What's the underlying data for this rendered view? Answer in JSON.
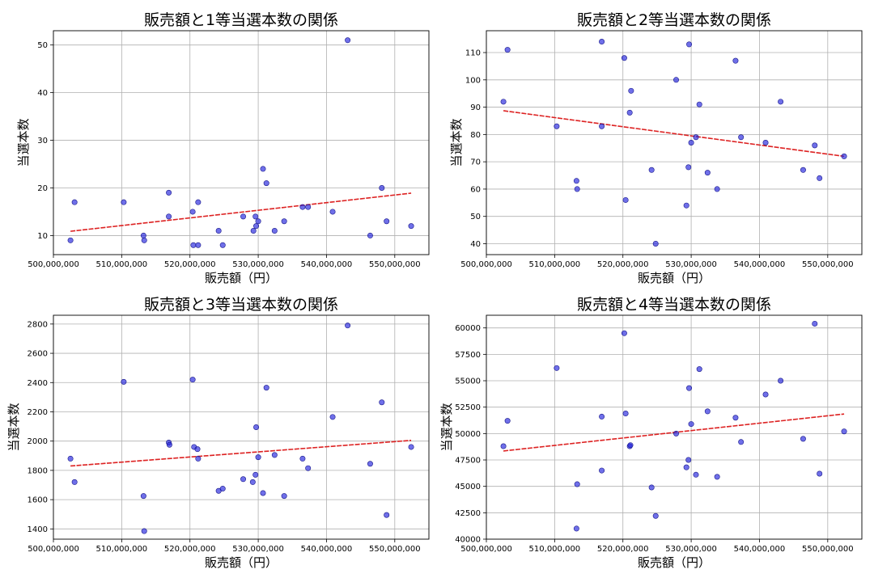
{
  "chart_data": [
    {
      "type": "scatter",
      "title": "販売額と1等当選本数の関係",
      "xlabel": "販売額（円）",
      "ylabel": "当選本数",
      "xlim": [
        500000000,
        555000000
      ],
      "ylim": [
        6,
        53
      ],
      "xticks": [
        500000000,
        510000000,
        520000000,
        530000000,
        540000000,
        550000000
      ],
      "xtick_labels": [
        "500,000,000",
        "510,000,000",
        "520,000,000",
        "530,000,000",
        "540,000,000",
        "550,000,000"
      ],
      "yticks": [
        10,
        20,
        30,
        40,
        50
      ],
      "ytick_labels": [
        "10",
        "20",
        "30",
        "40",
        "50"
      ],
      "grid": true,
      "points": [
        {
          "x": 502500000,
          "y": 9
        },
        {
          "x": 503100000,
          "y": 17
        },
        {
          "x": 510300000,
          "y": 17
        },
        {
          "x": 513200000,
          "y": 10
        },
        {
          "x": 513300000,
          "y": 9
        },
        {
          "x": 516900000,
          "y": 19
        },
        {
          "x": 516900000,
          "y": 14
        },
        {
          "x": 520400000,
          "y": 15
        },
        {
          "x": 520500000,
          "y": 8
        },
        {
          "x": 521200000,
          "y": 17
        },
        {
          "x": 521200000,
          "y": 8
        },
        {
          "x": 524200000,
          "y": 11
        },
        {
          "x": 524800000,
          "y": 8
        },
        {
          "x": 527800000,
          "y": 14
        },
        {
          "x": 529300000,
          "y": 11
        },
        {
          "x": 529600000,
          "y": 14
        },
        {
          "x": 529700000,
          "y": 12
        },
        {
          "x": 530000000,
          "y": 13
        },
        {
          "x": 530700000,
          "y": 24
        },
        {
          "x": 531200000,
          "y": 21
        },
        {
          "x": 532400000,
          "y": 11
        },
        {
          "x": 533800000,
          "y": 13
        },
        {
          "x": 536500000,
          "y": 16
        },
        {
          "x": 537300000,
          "y": 16
        },
        {
          "x": 540900000,
          "y": 15
        },
        {
          "x": 543100000,
          "y": 51
        },
        {
          "x": 546400000,
          "y": 10
        },
        {
          "x": 548100000,
          "y": 20
        },
        {
          "x": 548800000,
          "y": 13
        },
        {
          "x": 552400000,
          "y": 12
        }
      ],
      "trend": {
        "x": [
          502500000,
          552400000
        ],
        "y": [
          10.9,
          18.9
        ]
      }
    },
    {
      "type": "scatter",
      "title": "販売額と2等当選本数の関係",
      "xlabel": "販売額（円）",
      "ylabel": "当選本数",
      "xlim": [
        500000000,
        555000000
      ],
      "ylim": [
        36,
        118
      ],
      "xticks": [
        500000000,
        510000000,
        520000000,
        530000000,
        540000000,
        550000000
      ],
      "xtick_labels": [
        "500,000,000",
        "510,000,000",
        "520,000,000",
        "530,000,000",
        "540,000,000",
        "550,000,000"
      ],
      "yticks": [
        40,
        50,
        60,
        70,
        80,
        90,
        100,
        110
      ],
      "ytick_labels": [
        "40",
        "50",
        "60",
        "70",
        "80",
        "90",
        "100",
        "110"
      ],
      "grid": true,
      "points": [
        {
          "x": 502500000,
          "y": 92
        },
        {
          "x": 503100000,
          "y": 111
        },
        {
          "x": 510300000,
          "y": 83
        },
        {
          "x": 513200000,
          "y": 63
        },
        {
          "x": 513300000,
          "y": 60
        },
        {
          "x": 516900000,
          "y": 114
        },
        {
          "x": 516900000,
          "y": 83
        },
        {
          "x": 520200000,
          "y": 108
        },
        {
          "x": 520400000,
          "y": 56
        },
        {
          "x": 521000000,
          "y": 88
        },
        {
          "x": 521200000,
          "y": 96
        },
        {
          "x": 524200000,
          "y": 67
        },
        {
          "x": 524800000,
          "y": 40
        },
        {
          "x": 527800000,
          "y": 100
        },
        {
          "x": 529300000,
          "y": 54
        },
        {
          "x": 529600000,
          "y": 68
        },
        {
          "x": 529700000,
          "y": 113
        },
        {
          "x": 530000000,
          "y": 77
        },
        {
          "x": 530700000,
          "y": 79
        },
        {
          "x": 531200000,
          "y": 91
        },
        {
          "x": 532400000,
          "y": 66
        },
        {
          "x": 533800000,
          "y": 60
        },
        {
          "x": 536500000,
          "y": 107
        },
        {
          "x": 537300000,
          "y": 79
        },
        {
          "x": 540900000,
          "y": 77
        },
        {
          "x": 543100000,
          "y": 92
        },
        {
          "x": 546400000,
          "y": 67
        },
        {
          "x": 548100000,
          "y": 76
        },
        {
          "x": 548800000,
          "y": 64
        },
        {
          "x": 552400000,
          "y": 72
        }
      ],
      "trend": {
        "x": [
          502500000,
          552400000
        ],
        "y": [
          88.7,
          72.0
        ]
      }
    },
    {
      "type": "scatter",
      "title": "販売額と3等当選本数の関係",
      "xlabel": "販売額（円）",
      "ylabel": "当選本数",
      "xlim": [
        500000000,
        555000000
      ],
      "ylim": [
        1330,
        2860
      ],
      "xticks": [
        500000000,
        510000000,
        520000000,
        530000000,
        540000000,
        550000000
      ],
      "xtick_labels": [
        "500,000,000",
        "510,000,000",
        "520,000,000",
        "530,000,000",
        "540,000,000",
        "550,000,000"
      ],
      "yticks": [
        1400,
        1600,
        1800,
        2000,
        2200,
        2400,
        2600,
        2800
      ],
      "ytick_labels": [
        "1400",
        "1600",
        "1800",
        "2000",
        "2200",
        "2400",
        "2600",
        "2800"
      ],
      "grid": true,
      "points": [
        {
          "x": 502500000,
          "y": 1880
        },
        {
          "x": 503100000,
          "y": 1720
        },
        {
          "x": 510300000,
          "y": 2405
        },
        {
          "x": 513200000,
          "y": 1625
        },
        {
          "x": 513300000,
          "y": 1385
        },
        {
          "x": 516900000,
          "y": 1990
        },
        {
          "x": 517000000,
          "y": 1975
        },
        {
          "x": 520400000,
          "y": 2420
        },
        {
          "x": 520600000,
          "y": 1960
        },
        {
          "x": 521100000,
          "y": 1945
        },
        {
          "x": 521200000,
          "y": 1880
        },
        {
          "x": 524200000,
          "y": 1660
        },
        {
          "x": 524800000,
          "y": 1675
        },
        {
          "x": 527800000,
          "y": 1740
        },
        {
          "x": 529200000,
          "y": 1720
        },
        {
          "x": 529600000,
          "y": 1770
        },
        {
          "x": 529700000,
          "y": 2095
        },
        {
          "x": 530000000,
          "y": 1890
        },
        {
          "x": 530700000,
          "y": 1645
        },
        {
          "x": 531200000,
          "y": 2365
        },
        {
          "x": 532400000,
          "y": 1905
        },
        {
          "x": 533800000,
          "y": 1625
        },
        {
          "x": 536500000,
          "y": 1880
        },
        {
          "x": 537300000,
          "y": 1815
        },
        {
          "x": 540900000,
          "y": 2165
        },
        {
          "x": 543100000,
          "y": 2790
        },
        {
          "x": 546400000,
          "y": 1845
        },
        {
          "x": 548100000,
          "y": 2265
        },
        {
          "x": 548800000,
          "y": 1495
        },
        {
          "x": 552400000,
          "y": 1960
        }
      ],
      "trend": {
        "x": [
          502500000,
          552400000
        ],
        "y": [
          1830,
          2005
        ]
      }
    },
    {
      "type": "scatter",
      "title": "販売額と4等当選本数の関係",
      "xlabel": "販売額（円）",
      "ylabel": "当選本数",
      "xlim": [
        500000000,
        555000000
      ],
      "ylim": [
        40000,
        61200
      ],
      "xticks": [
        500000000,
        510000000,
        520000000,
        530000000,
        540000000,
        550000000
      ],
      "xtick_labels": [
        "500,000,000",
        "510,000,000",
        "520,000,000",
        "530,000,000",
        "540,000,000",
        "550,000,000"
      ],
      "yticks": [
        40000,
        42500,
        45000,
        47500,
        50000,
        52500,
        55000,
        57500,
        60000
      ],
      "ytick_labels": [
        "40000",
        "42500",
        "45000",
        "47500",
        "50000",
        "52500",
        "55000",
        "57500",
        "60000"
      ],
      "grid": true,
      "points": [
        {
          "x": 502500000,
          "y": 48800
        },
        {
          "x": 503100000,
          "y": 51200
        },
        {
          "x": 510300000,
          "y": 56200
        },
        {
          "x": 513200000,
          "y": 41000
        },
        {
          "x": 513300000,
          "y": 45200
        },
        {
          "x": 516900000,
          "y": 46500
        },
        {
          "x": 516900000,
          "y": 51600
        },
        {
          "x": 520200000,
          "y": 59500
        },
        {
          "x": 520400000,
          "y": 51900
        },
        {
          "x": 521000000,
          "y": 48800
        },
        {
          "x": 521100000,
          "y": 48900
        },
        {
          "x": 524200000,
          "y": 44900
        },
        {
          "x": 524800000,
          "y": 42200
        },
        {
          "x": 527800000,
          "y": 50000
        },
        {
          "x": 529300000,
          "y": 46800
        },
        {
          "x": 529600000,
          "y": 47500
        },
        {
          "x": 529700000,
          "y": 54300
        },
        {
          "x": 530000000,
          "y": 50900
        },
        {
          "x": 530700000,
          "y": 46100
        },
        {
          "x": 531200000,
          "y": 56100
        },
        {
          "x": 532400000,
          "y": 52100
        },
        {
          "x": 533800000,
          "y": 45900
        },
        {
          "x": 536500000,
          "y": 51500
        },
        {
          "x": 537300000,
          "y": 49200
        },
        {
          "x": 540900000,
          "y": 53700
        },
        {
          "x": 543100000,
          "y": 55000
        },
        {
          "x": 546400000,
          "y": 49500
        },
        {
          "x": 548100000,
          "y": 60400
        },
        {
          "x": 548800000,
          "y": 46200
        },
        {
          "x": 552400000,
          "y": 50200
        }
      ],
      "trend": {
        "x": [
          502500000,
          552400000
        ],
        "y": [
          48350,
          51850
        ]
      }
    }
  ]
}
